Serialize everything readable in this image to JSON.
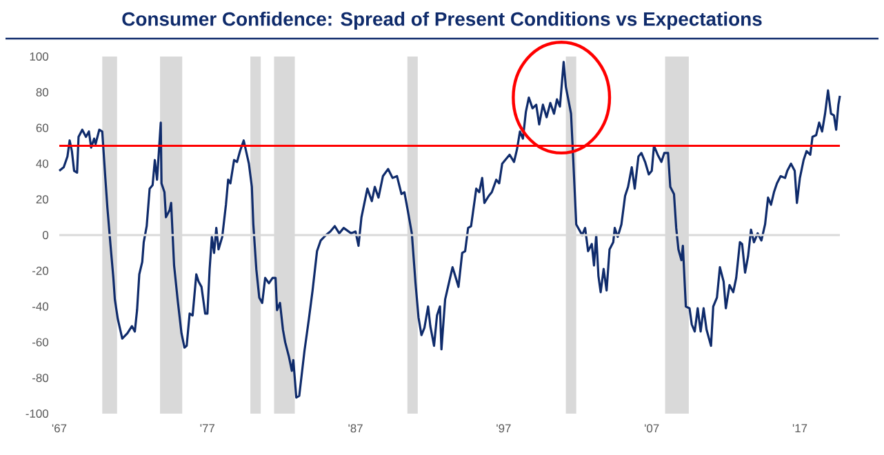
{
  "chart_data": {
    "type": "line",
    "title": "Consumer Confidence: Spread of Present Conditions vs Expectations",
    "xlim": [
      1967,
      2019.7
    ],
    "ylim": [
      -100,
      100
    ],
    "xticks": [
      {
        "value": 1967,
        "label": "'67"
      },
      {
        "value": 1977,
        "label": "'77"
      },
      {
        "value": 1987,
        "label": "'87"
      },
      {
        "value": 1997,
        "label": "'97"
      },
      {
        "value": 2007,
        "label": "'07"
      },
      {
        "value": 2017,
        "label": "'17"
      }
    ],
    "yticks": [
      -100,
      -80,
      -60,
      -40,
      -20,
      0,
      20,
      40,
      60,
      80,
      100
    ],
    "grid": false,
    "marker": "none",
    "line_style": "solid",
    "ref_lines": [
      {
        "axis": "y",
        "value": 0,
        "label": null,
        "color": "#d9d9d9",
        "line_style": "solid"
      },
      {
        "axis": "y",
        "value": 50,
        "label": null,
        "color": "#ff0000",
        "line_style": "solid"
      }
    ],
    "bands": [
      {
        "axis": "x",
        "from": 1969.9,
        "to": 1970.9,
        "label": null,
        "color": "#d9d9d9"
      },
      {
        "axis": "x",
        "from": 1973.8,
        "to": 1975.3,
        "label": null,
        "color": "#d9d9d9"
      },
      {
        "axis": "x",
        "from": 1979.9,
        "to": 1980.6,
        "label": null,
        "color": "#d9d9d9"
      },
      {
        "axis": "x",
        "from": 1981.5,
        "to": 1982.9,
        "label": null,
        "color": "#d9d9d9"
      },
      {
        "axis": "x",
        "from": 1990.5,
        "to": 1991.2,
        "label": null,
        "color": "#d9d9d9"
      },
      {
        "axis": "x",
        "from": 2001.2,
        "to": 2001.9,
        "label": null,
        "color": "#d9d9d9"
      },
      {
        "axis": "x",
        "from": 2007.9,
        "to": 2009.5,
        "label": null,
        "color": "#d9d9d9"
      }
    ],
    "series": [
      {
        "color": "#0f2b6b",
        "x": [
          1967.0,
          1967.3,
          1967.55,
          1967.7,
          1967.85,
          1968.0,
          1968.2,
          1968.3,
          1968.55,
          1968.8,
          1969.0,
          1969.15,
          1969.35,
          1969.45,
          1969.7,
          1969.9,
          1970.1,
          1970.25,
          1970.45,
          1970.65,
          1970.75,
          1970.95,
          1971.25,
          1971.6,
          1971.9,
          1972.1,
          1972.25,
          1972.4,
          1972.6,
          1972.7,
          1972.9,
          1973.1,
          1973.3,
          1973.45,
          1973.6,
          1973.85,
          1973.9,
          1974.1,
          1974.2,
          1974.45,
          1974.55,
          1974.75,
          1975.0,
          1975.25,
          1975.45,
          1975.6,
          1975.8,
          1976.0,
          1976.25,
          1976.4,
          1976.6,
          1976.85,
          1977.0,
          1977.15,
          1977.3,
          1977.45,
          1977.6,
          1977.75,
          1978.0,
          1978.25,
          1978.4,
          1978.55,
          1978.8,
          1979.0,
          1979.2,
          1979.45,
          1979.8,
          1980.0,
          1980.1,
          1980.3,
          1980.5,
          1980.7,
          1980.9,
          1981.15,
          1981.4,
          1981.6,
          1981.7,
          1981.9,
          1982.1,
          1982.25,
          1982.5,
          1982.7,
          1982.8,
          1983.0,
          1983.2,
          1983.55,
          1983.85,
          1984.1,
          1984.4,
          1984.65,
          1985.0,
          1985.3,
          1985.6,
          1985.9,
          1986.2,
          1986.7,
          1987.0,
          1987.2,
          1987.4,
          1987.8,
          1988.1,
          1988.3,
          1988.55,
          1988.85,
          1989.2,
          1989.5,
          1989.8,
          1990.1,
          1990.3,
          1990.5,
          1990.8,
          1991.05,
          1991.25,
          1991.45,
          1991.65,
          1991.9,
          1992.05,
          1992.3,
          1992.5,
          1992.7,
          1992.8,
          1993.05,
          1993.3,
          1993.55,
          1993.7,
          1993.95,
          1994.2,
          1994.4,
          1994.6,
          1994.8,
          1995.15,
          1995.35,
          1995.55,
          1995.7,
          1996.0,
          1996.2,
          1996.5,
          1996.7,
          1996.9,
          1997.1,
          1997.4,
          1997.7,
          1997.9,
          1998.1,
          1998.3,
          1998.5,
          1998.7,
          1998.95,
          1999.2,
          1999.4,
          1999.65,
          1999.9,
          2000.15,
          2000.4,
          2000.6,
          2000.8,
          2001.05,
          2001.2,
          2001.55,
          2001.7,
          2001.9,
          2002.1,
          2002.3,
          2002.5,
          2002.7,
          2002.95,
          2003.1,
          2003.25,
          2003.4,
          2003.55,
          2003.75,
          2003.95,
          2004.15,
          2004.4,
          2004.5,
          2004.7,
          2004.95,
          2005.2,
          2005.4,
          2005.65,
          2005.85,
          2006.1,
          2006.3,
          2006.55,
          2006.8,
          2007.0,
          2007.15,
          2007.4,
          2007.65,
          2007.85,
          2008.1,
          2008.25,
          2008.5,
          2008.65,
          2008.8,
          2009.0,
          2009.1,
          2009.3,
          2009.55,
          2009.7,
          2009.9,
          2010.1,
          2010.3,
          2010.5,
          2010.7,
          2011.0,
          2011.15,
          2011.4,
          2011.6,
          2011.85,
          2012.0,
          2012.25,
          2012.5,
          2012.7,
          2012.95,
          2013.1,
          2013.3,
          2013.5,
          2013.7,
          2013.9,
          2014.15,
          2014.4,
          2014.65,
          2014.85,
          2015.05,
          2015.25,
          2015.45,
          2015.7,
          2016.0,
          2016.15,
          2016.4,
          2016.65,
          2016.8,
          2017.0,
          2017.25,
          2017.45,
          2017.7,
          2017.85,
          2018.1,
          2018.3,
          2018.5,
          2018.7,
          2018.9,
          2019.1,
          2019.3,
          2019.45,
          2019.6,
          2019.7
        ],
        "values": [
          36,
          38,
          44,
          53,
          47,
          36,
          35,
          55,
          59,
          55,
          58,
          49,
          54,
          51,
          59,
          58,
          33,
          15,
          -5,
          -24,
          -36,
          -47,
          -58,
          -55,
          -51,
          -54,
          -42,
          -22,
          -15,
          -4,
          5,
          26,
          28,
          42,
          31,
          63,
          29,
          24,
          10,
          14,
          18,
          -17,
          -37,
          -55,
          -63,
          -62,
          -44,
          -45,
          -22,
          -26,
          -29,
          -44,
          -44,
          -19,
          -1,
          -10,
          4,
          -8,
          -1,
          17,
          31,
          29,
          42,
          41,
          47,
          53,
          40,
          27,
          6,
          -19,
          -35,
          -38,
          -24,
          -27,
          -24,
          -24,
          -42,
          -38,
          -53,
          -60,
          -68,
          -76,
          -70,
          -91,
          -90,
          -65,
          -47,
          -31,
          -9,
          -3,
          0,
          2,
          5,
          1,
          4,
          1,
          2,
          -6,
          10,
          26,
          19,
          27,
          21,
          33,
          37,
          32,
          33,
          23,
          24,
          15,
          1,
          -27,
          -46,
          -56,
          -52,
          -40,
          -51,
          -62,
          -45,
          -40,
          -64,
          -36,
          -27,
          -18,
          -22,
          -29,
          -10,
          -9,
          4,
          5,
          26,
          24,
          32,
          18,
          22,
          24,
          31,
          29,
          40,
          42,
          45,
          41,
          48,
          58,
          54,
          69,
          77,
          71,
          73,
          62,
          73,
          66,
          74,
          68,
          76,
          72,
          97,
          83,
          68,
          42,
          6,
          3,
          0,
          4,
          -9,
          -5,
          -17,
          0,
          -23,
          -32,
          -19,
          -31,
          -8,
          -4,
          4,
          -1,
          6,
          22,
          27,
          38,
          26,
          44,
          46,
          41,
          34,
          36,
          50,
          45,
          41,
          46,
          46,
          27,
          23,
          4,
          -8,
          -14,
          -6,
          -40,
          -41,
          -50,
          -54,
          -41,
          -54,
          -41,
          -53,
          -62,
          -40,
          -35,
          -18,
          -26,
          -41,
          -28,
          -32,
          -24,
          -4,
          -5,
          -21,
          -12,
          3,
          -4,
          1,
          -3,
          6,
          21,
          17,
          24,
          29,
          33,
          32,
          36,
          40,
          36,
          18,
          32,
          42,
          47,
          45,
          55,
          56,
          63,
          58,
          68,
          81,
          68,
          67,
          59,
          73,
          78
        ]
      }
    ]
  }
}
